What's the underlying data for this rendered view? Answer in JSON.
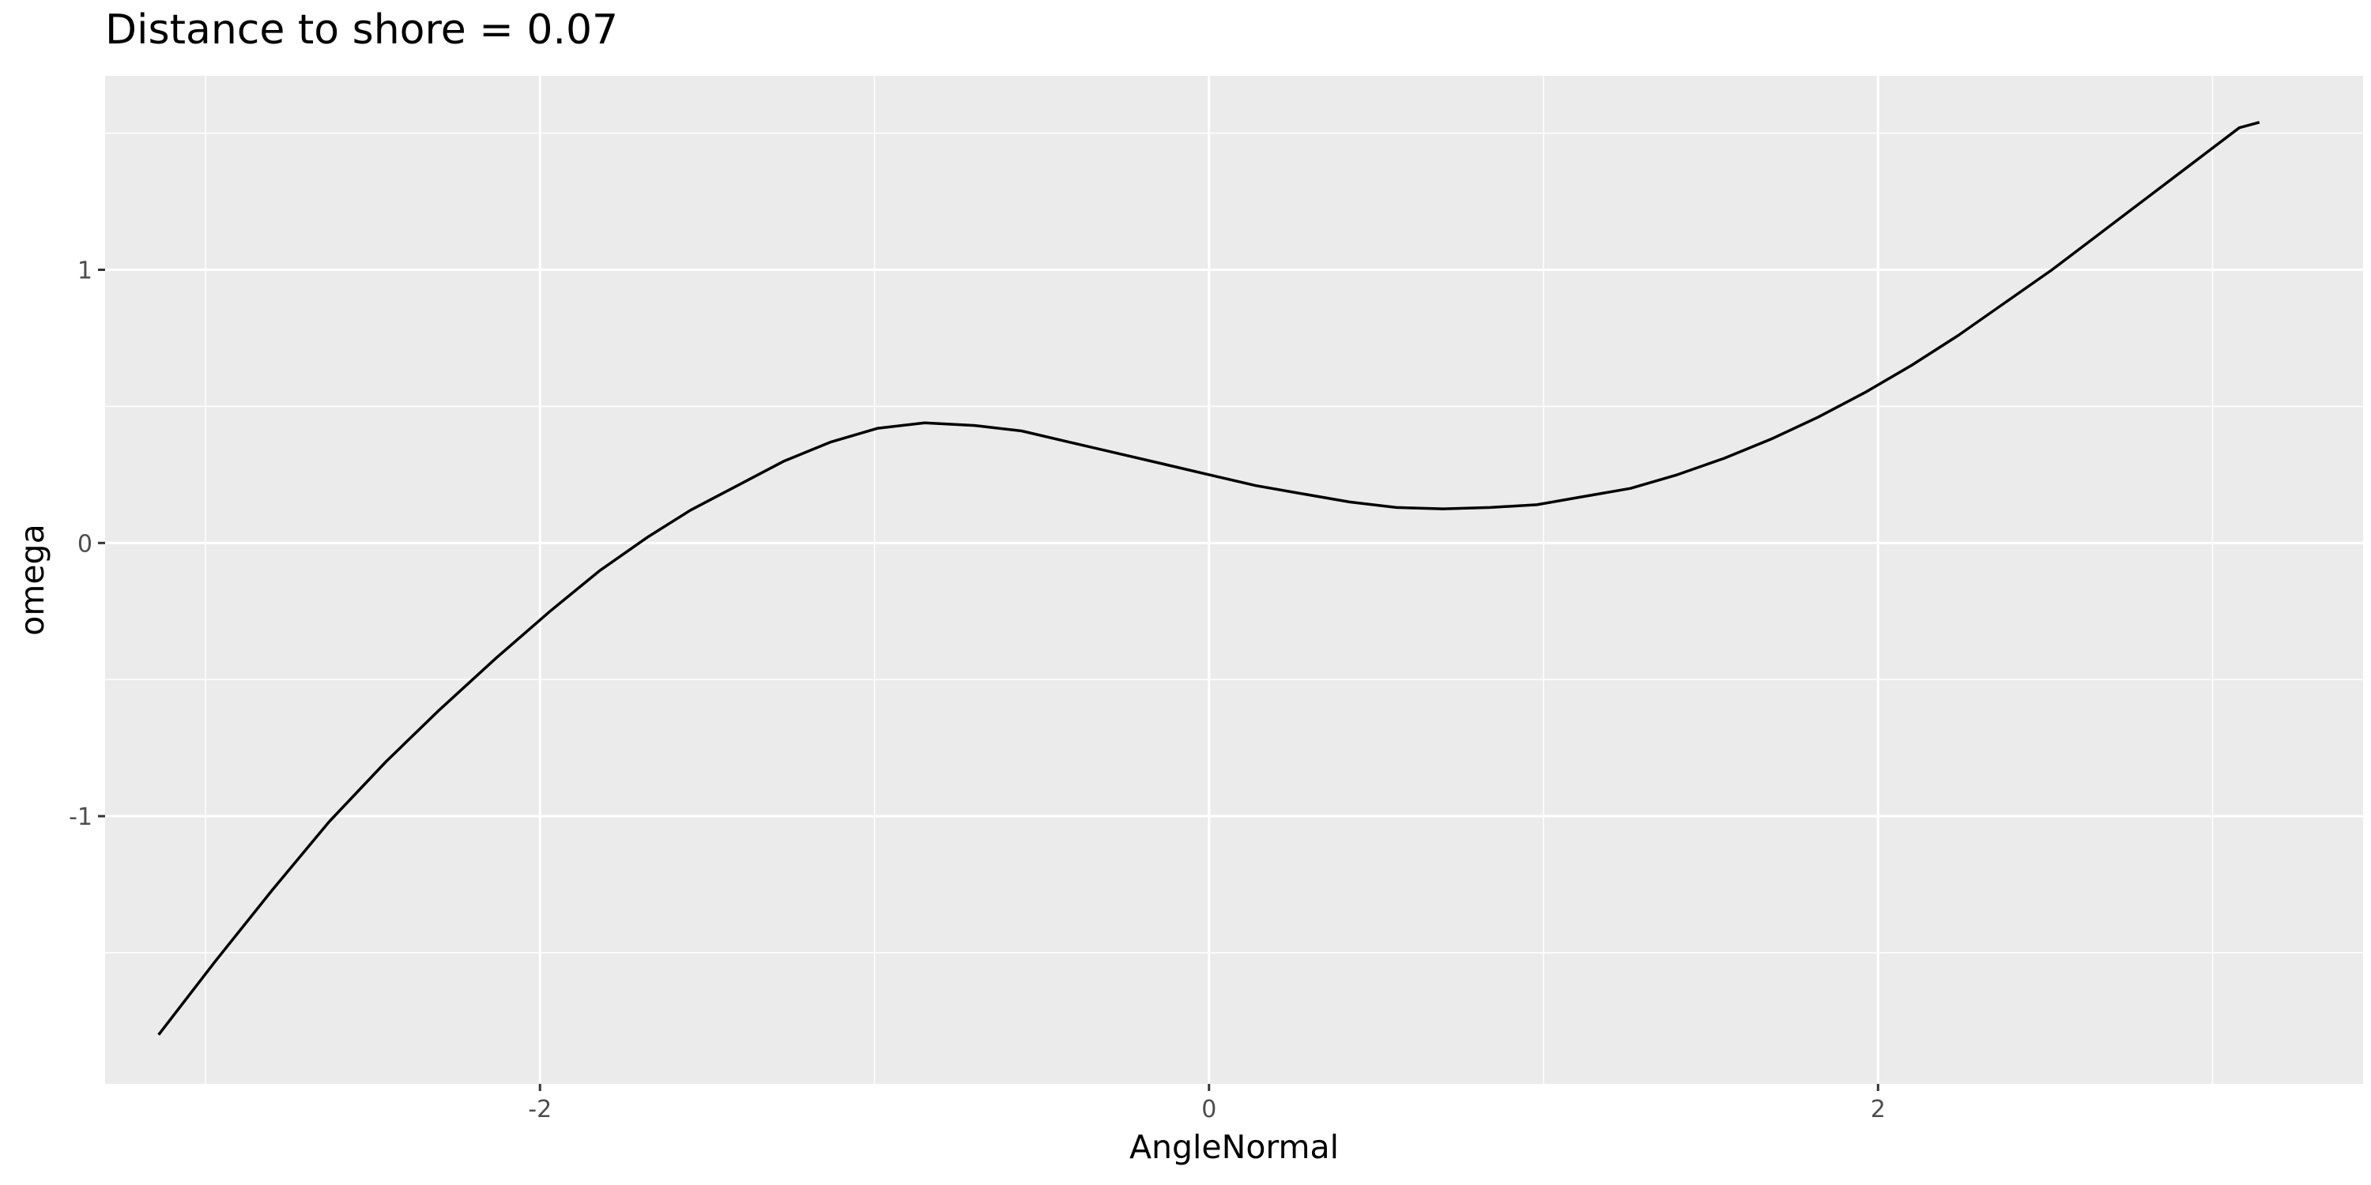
{
  "chart_data": {
    "type": "line",
    "title": "Distance to shore = 0.07",
    "xlabel": "AngleNormal",
    "ylabel": "omega",
    "xlim": [
      -3.3,
      3.45
    ],
    "ylim": [
      -1.98,
      1.71
    ],
    "x_ticks": [
      -2,
      0,
      2
    ],
    "x_tick_labels": [
      "-2",
      "0",
      "2"
    ],
    "x_minor_ticks": [
      -3,
      -1,
      1,
      3
    ],
    "y_ticks": [
      -1,
      0,
      1
    ],
    "y_tick_labels": [
      "-1",
      "0",
      "1"
    ],
    "y_minor_ticks": [
      -1.5,
      -0.5,
      0.5,
      1.5
    ],
    "grid": true,
    "colors": {
      "panel": "#EBEBEB",
      "grid": "#FFFFFF",
      "line": "#000000",
      "tick_text": "#4D4D4D",
      "axis_tick": "#333333"
    },
    "series": [
      {
        "x": [
          -3.14,
          -2.97,
          -2.8,
          -2.63,
          -2.46,
          -2.3,
          -2.13,
          -1.97,
          -1.82,
          -1.68,
          -1.55,
          -1.41,
          -1.27,
          -1.13,
          -0.99,
          -0.85,
          -0.7,
          -0.56,
          -0.42,
          -0.28,
          -0.14,
          0.0,
          0.14,
          0.28,
          0.42,
          0.56,
          0.7,
          0.84,
          0.98,
          1.12,
          1.26,
          1.4,
          1.54,
          1.68,
          1.82,
          1.96,
          2.1,
          2.24,
          2.38,
          2.52,
          2.66,
          2.8,
          2.94,
          3.08,
          3.14
        ],
        "y": [
          -1.8,
          -1.53,
          -1.27,
          -1.02,
          -0.8,
          -0.61,
          -0.42,
          -0.25,
          -0.1,
          0.02,
          0.12,
          0.21,
          0.3,
          0.37,
          0.42,
          0.44,
          0.43,
          0.41,
          0.37,
          0.33,
          0.29,
          0.25,
          0.21,
          0.18,
          0.15,
          0.13,
          0.125,
          0.13,
          0.14,
          0.17,
          0.2,
          0.25,
          0.31,
          0.38,
          0.46,
          0.55,
          0.65,
          0.76,
          0.88,
          1.0,
          1.13,
          1.26,
          1.39,
          1.52,
          1.54
        ]
      }
    ]
  }
}
